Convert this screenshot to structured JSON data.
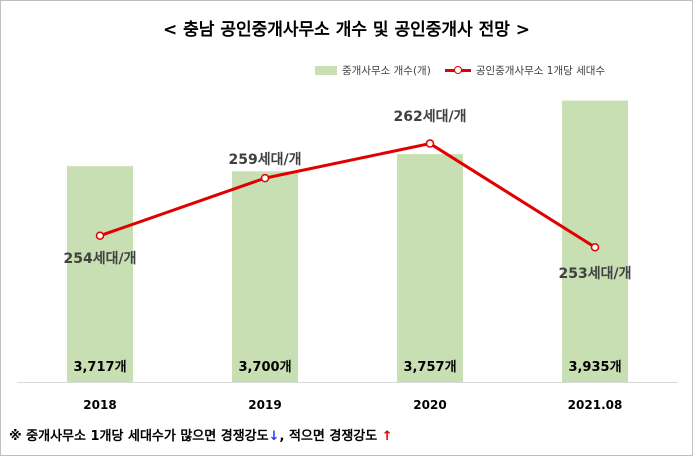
{
  "title": "< 충남 공인중개사무소 개수 및 공인중개사 전망 >",
  "legend": {
    "bar_label": "중개사무소 개수(개)",
    "line_label": "공인중개사무소 1개당 세대수"
  },
  "footnote": {
    "text1": "※ 중개사무소 1개당 세대수가 많으면 경쟁강도",
    "down_arrow": "↓",
    "text2": ", 적으면 경쟁강도 ",
    "up_arrow": "↑"
  },
  "colors": {
    "bar": "#c8dfb4",
    "line": "#e00000"
  },
  "chart_data": {
    "type": "bar",
    "categories": [
      "2018",
      "2019",
      "2020",
      "2021.08"
    ],
    "series": [
      {
        "name": "중개사무소 개수(개)",
        "type": "bar",
        "values": [
          3717,
          3700,
          3757,
          3935
        ],
        "labels": [
          "3,717개",
          "3,700개",
          "3,757개",
          "3,935개"
        ]
      },
      {
        "name": "공인중개사무소 1개당 세대수",
        "type": "line",
        "values": [
          254,
          259,
          262,
          253
        ],
        "labels": [
          "254세대/개",
          "259세대/개",
          "262세대/개",
          "253세대/개"
        ]
      }
    ],
    "bar_axis_range": [
      3000,
      4000
    ],
    "line_axis_range": [
      240,
      265
    ],
    "grid": false,
    "legend_position": "top-right"
  }
}
